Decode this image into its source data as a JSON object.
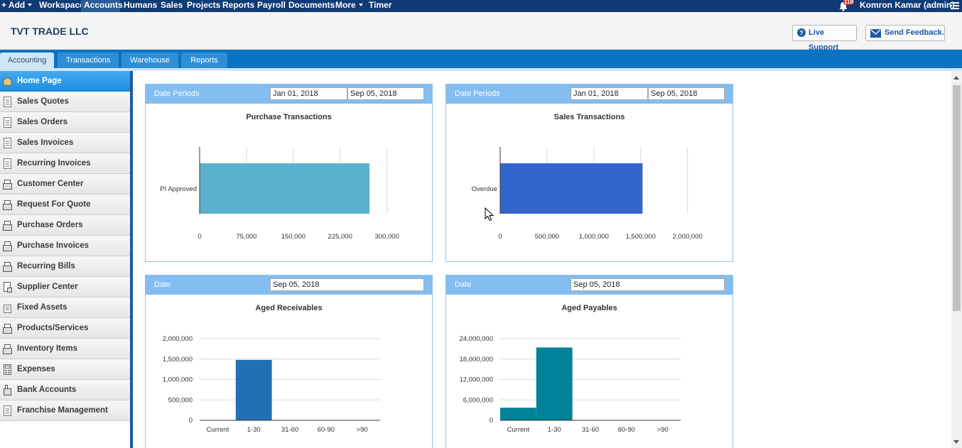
{
  "topnav": {
    "items": [
      {
        "label": "+ Add",
        "caret": true
      },
      {
        "label": "Workspace"
      },
      {
        "label": "Accounts",
        "active": true
      },
      {
        "label": "Humans"
      },
      {
        "label": "Sales"
      },
      {
        "label": "Projects"
      },
      {
        "label": "Reports"
      },
      {
        "label": "Payroll"
      },
      {
        "label": "Documents"
      },
      {
        "label": "More",
        "caret": true
      },
      {
        "label": "Timer"
      }
    ],
    "notification_count": "118",
    "user": "Komron Kamar (admin)"
  },
  "header": {
    "company": "TVT TRADE LLC",
    "live_support": "Live Support",
    "send_feedback": "Send Feedback."
  },
  "tabs": [
    "Accounting",
    "Transactions",
    "Warehouse",
    "Reports"
  ],
  "sidebar": {
    "items": [
      "Home Page",
      "Sales Quotes",
      "Sales Orders",
      "Sales Invoices",
      "Recurring Invoices",
      "Customer Center",
      "Request For Quote",
      "Purchase Orders",
      "Purchase Invoices",
      "Recurring Bills",
      "Supplier Center",
      "Fixed Assets",
      "Products/Services",
      "Inventory Items",
      "Expenses",
      "Bank Accounts",
      "Franchise Management"
    ]
  },
  "panels": {
    "purchase": {
      "head_label": "Date Periods",
      "date_from": "Jan 01, 2018",
      "date_to": "Sep 05, 2018",
      "title": "Purchase Transactions"
    },
    "sales": {
      "head_label": "Date Periods",
      "date_from": "Jan 01, 2018",
      "date_to": "Sep 05, 2018",
      "title": "Sales Transactions"
    },
    "receivables": {
      "head_label": "Date",
      "date": "Sep 05, 2018",
      "title": "Aged Receivables"
    },
    "payables": {
      "head_label": "Date",
      "date": "Sep 05, 2018",
      "title": "Aged Payables"
    }
  },
  "chart_data": [
    {
      "type": "bar",
      "orientation": "horizontal",
      "title": "Purchase Transactions",
      "categories": [
        "PI Approved"
      ],
      "values": [
        272000
      ],
      "xlim": [
        0,
        330000
      ],
      "ticks": [
        "0",
        "75,000",
        "150,000",
        "225,000",
        "300,000"
      ],
      "tick_values": [
        0,
        75000,
        150000,
        225000,
        300000
      ],
      "color": "#5ab1cf"
    },
    {
      "type": "bar",
      "orientation": "horizontal",
      "title": "Sales Transactions",
      "categories": [
        "Overdue"
      ],
      "values": [
        1520000
      ],
      "xlim": [
        0,
        2200000
      ],
      "ticks": [
        "0",
        "500,000",
        "1,000,000",
        "1,500,000",
        "2,000,000"
      ],
      "tick_values": [
        0,
        500000,
        1000000,
        1500000,
        2000000
      ],
      "color": "#3366cc"
    },
    {
      "type": "bar",
      "title": "Aged Receivables",
      "categories": [
        "Current",
        "1-30",
        "31-60",
        "60-90",
        ">90"
      ],
      "values": [
        0,
        1480000,
        0,
        0,
        0
      ],
      "ylim": [
        0,
        2000000
      ],
      "ticks": [
        "0",
        "500,000",
        "1,000,000",
        "1,500,000",
        "2,000,000"
      ],
      "tick_values": [
        0,
        500000,
        1000000,
        1500000,
        2000000
      ],
      "color": "#2170b4"
    },
    {
      "type": "bar",
      "title": "Aged Payables",
      "categories": [
        "Current",
        "1-30",
        "31-60",
        "60-90",
        ">90"
      ],
      "values": [
        3700000,
        21400000,
        0,
        0,
        0
      ],
      "ylim": [
        0,
        24000000
      ],
      "ticks": [
        "0",
        "6,000,000",
        "12,000,000",
        "18,000,000",
        "24,000,000"
      ],
      "tick_values": [
        0,
        6000000,
        12000000,
        18000000,
        24000000
      ],
      "color": "#00829a"
    }
  ]
}
